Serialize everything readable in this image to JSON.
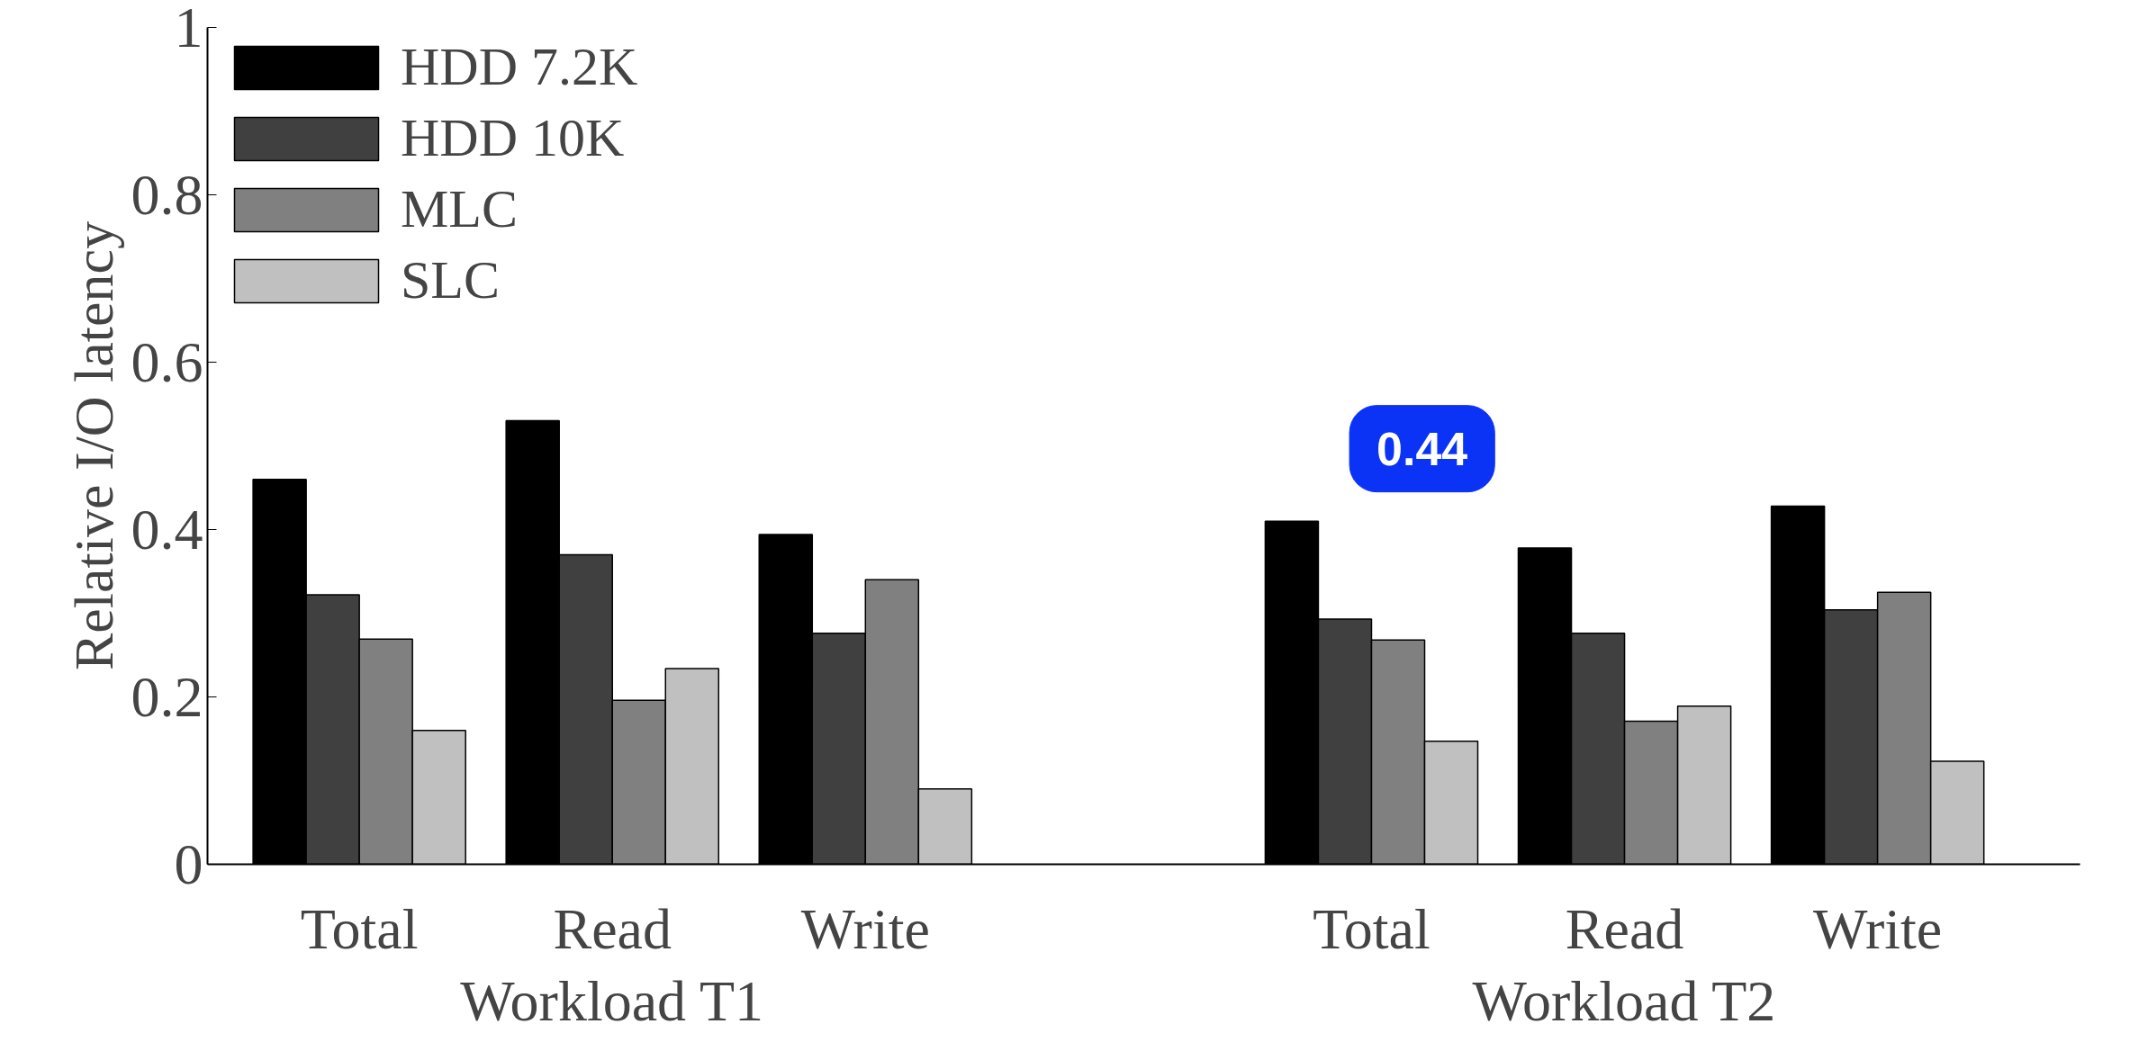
{
  "chart_data": {
    "type": "bar",
    "ylabel": "Relative I/O latency",
    "categories": [
      "Total",
      "Read",
      "Write",
      null,
      "Total",
      "Read",
      "Write"
    ],
    "series": [
      {
        "name": "HDD 7.2K",
        "color": "#000000",
        "values": [
          0.46,
          0.53,
          0.394,
          null,
          0.41,
          0.378,
          0.428
        ]
      },
      {
        "name": "HDD 10K",
        "color": "#404040",
        "values": [
          0.322,
          0.37,
          0.276,
          null,
          0.293,
          0.276,
          0.304
        ]
      },
      {
        "name": "MLC",
        "color": "#808080",
        "values": [
          0.269,
          0.196,
          0.34,
          null,
          0.268,
          0.171,
          0.325
        ]
      },
      {
        "name": "SLC",
        "color": "#c0c0c0",
        "values": [
          0.16,
          0.234,
          0.09,
          null,
          0.147,
          0.189,
          0.123
        ]
      }
    ],
    "ylim": [
      0,
      1
    ],
    "yticks": [
      0,
      0.2,
      0.4,
      0.6,
      0.8,
      1
    ],
    "annotations": [
      "Workload T1",
      "Workload T2",
      "0.44"
    ],
    "legend": "top left",
    "grid": false
  }
}
